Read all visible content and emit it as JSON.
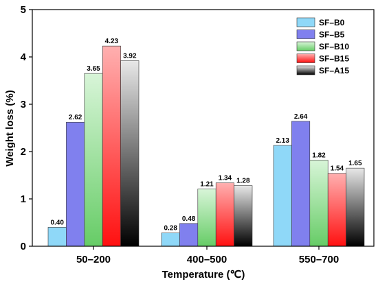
{
  "chart_data": {
    "type": "bar",
    "xlabel": "Temperature (℃)",
    "ylabel": "Weight loss (%)",
    "ylim": [
      0,
      5
    ],
    "yticks": [
      "0",
      "1",
      "2",
      "3",
      "4",
      "5"
    ],
    "categories": [
      "50–200",
      "400–500",
      "550–700"
    ],
    "legend_position": "top-right",
    "series": [
      {
        "name": "SF–B0",
        "values": [
          0.4,
          0.28,
          2.13
        ],
        "labels": [
          "0.40",
          "0.28",
          "2.13"
        ],
        "color": "#8fd8f8",
        "gradient": false
      },
      {
        "name": "SF–B5",
        "values": [
          2.62,
          0.48,
          2.64
        ],
        "labels": [
          "2.62",
          "0.48",
          "2.64"
        ],
        "color": "#8080ee",
        "gradient": false
      },
      {
        "name": "SF–B10",
        "values": [
          3.65,
          1.21,
          1.82
        ],
        "labels": [
          "3.65",
          "1.21",
          "1.82"
        ],
        "color": "#66cc66",
        "gradient": true,
        "gradient_from": "#d8f5d8"
      },
      {
        "name": "SF–B15",
        "values": [
          4.23,
          1.34,
          1.54
        ],
        "labels": [
          "4.23",
          "1.34",
          "1.54"
        ],
        "color": "#ff1010",
        "gradient": true,
        "gradient_from": "#ffb0b0"
      },
      {
        "name": "SF–A15",
        "values": [
          3.92,
          1.28,
          1.65
        ],
        "labels": [
          "3.92",
          "1.28",
          "1.65"
        ],
        "color": "#000000",
        "gradient": true,
        "gradient_from": "#e8e8e8"
      }
    ]
  }
}
